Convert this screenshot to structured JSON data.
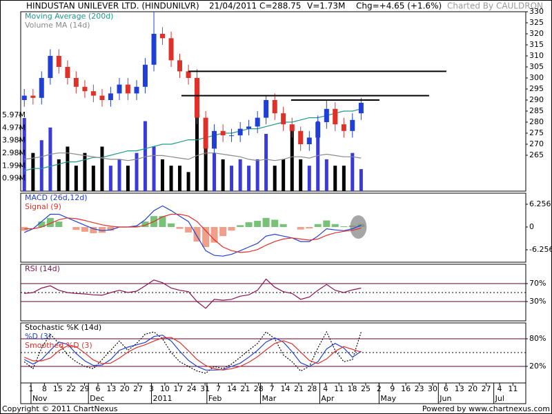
{
  "header": {
    "title": "HINDUSTAN UNILEVER LTD. (HINDUNILVR)",
    "date": "21/04/2011",
    "close": "C=288.75",
    "volume": "V=1.73M",
    "change": "Chg=+4.65 (+1.6%)",
    "credit": "Charted By CAULDRON"
  },
  "footer": {
    "copyright": "Copyright © 2011 ChartNexus",
    "powered_by": "Powered by www.chartnexus.com"
  },
  "chart_data": [
    {
      "type": "candlestick",
      "x": [
        -0.5,
        0.15,
        0.79,
        1.44,
        2.08,
        2.73,
        3.37,
        4.02,
        4.66,
        5.31,
        5.95,
        6.6,
        7.24,
        7.89,
        8.53,
        9.18,
        9.82,
        10.47,
        11.11,
        11.76,
        12.4,
        13.05,
        13.69,
        14.34,
        14.98,
        15.63,
        16.27,
        16.92,
        17.56,
        18.21,
        18.85,
        19.5,
        20.14,
        20.79,
        21.43,
        22.08,
        22.72,
        23.37,
        24.01,
        24.66
      ],
      "xlim": [
        -0.77,
        36.96
      ],
      "xticks": [
        {
          "value": 0,
          "label": "1"
        },
        {
          "value": 1,
          "label": "8"
        },
        {
          "value": 2,
          "label": "15"
        },
        {
          "value": 3,
          "label": "22"
        },
        {
          "value": 4,
          "label": "29"
        },
        {
          "value": 5,
          "label": "6"
        },
        {
          "value": 6,
          "label": "13"
        },
        {
          "value": 7,
          "label": "20"
        },
        {
          "value": 8,
          "label": "27"
        },
        {
          "value": 9,
          "label": "3"
        },
        {
          "value": 10,
          "label": "10"
        },
        {
          "value": 11,
          "label": "17"
        },
        {
          "value": 12,
          "label": "24"
        },
        {
          "value": 13,
          "label": "31"
        },
        {
          "value": 14,
          "label": "7"
        },
        {
          "value": 15,
          "label": "14"
        },
        {
          "value": 16,
          "label": "21"
        },
        {
          "value": 17,
          "label": "28"
        },
        {
          "value": 18,
          "label": "7"
        },
        {
          "value": 19,
          "label": "14"
        },
        {
          "value": 20,
          "label": "21"
        },
        {
          "value": 21,
          "label": "28"
        },
        {
          "value": 22,
          "label": "4"
        },
        {
          "value": 23,
          "label": "11"
        },
        {
          "value": 24,
          "label": "18"
        },
        {
          "value": 25,
          "label": "25"
        },
        {
          "value": 26,
          "label": "2"
        },
        {
          "value": 27,
          "label": "9"
        },
        {
          "value": 28,
          "label": "16"
        },
        {
          "value": 29,
          "label": "23"
        },
        {
          "value": 30,
          "label": "30"
        },
        {
          "value": 31,
          "label": "6"
        },
        {
          "value": 32,
          "label": "13"
        },
        {
          "value": 33,
          "label": "20"
        },
        {
          "value": 34,
          "label": "27"
        },
        {
          "value": 35,
          "label": "4"
        },
        {
          "value": 36,
          "label": "11"
        }
      ],
      "month_ticks": [
        {
          "value": 0,
          "label": "Nov"
        },
        {
          "value": 4.29,
          "label": "Dec"
        },
        {
          "value": 9,
          "label": "2011"
        },
        {
          "value": 13.14,
          "label": "Feb"
        },
        {
          "value": 17.14,
          "label": "Mar"
        },
        {
          "value": 21.57,
          "label": "Apr"
        },
        {
          "value": 26,
          "label": "May"
        },
        {
          "value": 30.43,
          "label": "Jun"
        },
        {
          "value": 34.57,
          "label": "Jul"
        }
      ],
      "open": [
        290,
        292,
        291,
        300,
        310,
        305,
        300,
        296,
        294,
        292,
        290,
        293,
        297,
        293,
        296,
        306,
        320,
        318,
        308,
        303,
        300,
        282,
        268,
        276,
        274,
        274,
        277,
        278,
        282,
        290,
        284,
        279,
        276,
        270,
        273,
        280,
        286,
        279,
        276,
        284
      ],
      "high": [
        295,
        295,
        303,
        313,
        313,
        308,
        303,
        299,
        297,
        295,
        296,
        300,
        300,
        299,
        309,
        330,
        323,
        321,
        311,
        306,
        304,
        285,
        279,
        279,
        277,
        280,
        281,
        285,
        292,
        293,
        287,
        282,
        278,
        276,
        283,
        290,
        289,
        282,
        284,
        291
      ],
      "low": [
        287,
        288,
        288,
        297,
        302,
        297,
        293,
        291,
        289,
        287,
        287,
        290,
        290,
        290,
        293,
        303,
        315,
        305,
        300,
        297,
        279,
        265,
        265,
        271,
        271,
        271,
        274,
        275,
        279,
        281,
        276,
        273,
        267,
        267,
        270,
        277,
        276,
        273,
        273,
        281
      ],
      "close": [
        292,
        291,
        300,
        310,
        305,
        300,
        296,
        294,
        292,
        290,
        293,
        297,
        293,
        296,
        306,
        320,
        318,
        308,
        303,
        300,
        282,
        268,
        276,
        274,
        274,
        277,
        278,
        282,
        290,
        284,
        279,
        276,
        270,
        273,
        280,
        286,
        279,
        276,
        281,
        288.75
      ],
      "candle_colors": [
        "#1f3fd6",
        "#e0302a"
      ],
      "ylim": [
        248.75,
        330
      ],
      "yticks": [
        265,
        270,
        275,
        280,
        285,
        290,
        295,
        300,
        305,
        310,
        315,
        320,
        325,
        330
      ],
      "volume": [
        5.75,
        3.0,
        4.0,
        5.0,
        2.5,
        3.5,
        2.0,
        3.0,
        2.0,
        3.5,
        2.0,
        2.5,
        2.0,
        3.0,
        5.5,
        3.5,
        2.5,
        2.0,
        2.0,
        1.5,
        7.0,
        4.0,
        3.0,
        2.5,
        2.0,
        2.5,
        2.0,
        2.5,
        4.5,
        2.0,
        2.5,
        5.0,
        2.5,
        2.0,
        5.5,
        2.5,
        2.0,
        2.0,
        3.0,
        1.73
      ],
      "volume_colors": [
        "#3a3ad8",
        "#000000"
      ],
      "y2lim": [
        0,
        14.1
      ],
      "y2ticks": [
        {
          "value": 0.99,
          "label": "0.99M"
        },
        {
          "value": 1.99,
          "label": "1.99M"
        },
        {
          "value": 2.98,
          "label": "2.98M"
        },
        {
          "value": 3.98,
          "label": "3.98M"
        },
        {
          "value": 4.97,
          "label": "4.97M"
        },
        {
          "value": 5.97,
          "label": "5.97M"
        }
      ],
      "series": [
        {
          "name": "Moving Average (200d)",
          "color": "#1e9a8a",
          "values": [
            258,
            259,
            259,
            260,
            261,
            262,
            262,
            263,
            264,
            264,
            265,
            266,
            267,
            267,
            268,
            269,
            270,
            270,
            271,
            272,
            272,
            273,
            274,
            275,
            275,
            276,
            277,
            277,
            278,
            279,
            280,
            280,
            281,
            282,
            282,
            283,
            284,
            285,
            285,
            286
          ]
        },
        {
          "name": "Volume MA (14d)",
          "color": "#8a8a8a",
          "axis": "y2",
          "values": [
            2.5,
            2.6,
            2.7,
            2.9,
            3.0,
            3.0,
            2.9,
            2.8,
            2.7,
            2.6,
            2.5,
            2.5,
            2.4,
            2.5,
            2.7,
            2.8,
            2.8,
            2.7,
            2.6,
            2.5,
            2.8,
            3.0,
            3.0,
            2.9,
            2.8,
            2.7,
            2.5,
            2.4,
            2.5,
            2.4,
            2.5,
            2.7,
            2.7,
            2.6,
            2.8,
            2.9,
            2.8,
            2.7,
            2.7,
            2.6
          ]
        }
      ],
      "reference_lines": [
        {
          "y": 303,
          "x": [
            11.75,
            31.03
          ]
        },
        {
          "y": 292,
          "x": [
            11.24,
            29.74
          ]
        },
        {
          "y": 290,
          "x": [
            19.43,
            26.03
          ]
        }
      ]
    },
    {
      "type": "line",
      "ylim": [
        -9.67,
        9.29
      ],
      "yticks": [
        -6.256,
        0,
        6.256
      ],
      "histogram": [
        -1.0,
        0,
        1.5,
        2.5,
        1.5,
        0,
        -0.8,
        -1.3,
        -1.7,
        -1.6,
        -1.0,
        0,
        0,
        0.3,
        1.5,
        3.0,
        3.0,
        1.0,
        -0.5,
        -1.5,
        -4.0,
        -5.5,
        -4.3,
        -2.5,
        -1.0,
        0.5,
        1.3,
        1.7,
        2.5,
        2.0,
        0.8,
        0,
        -0.7,
        -0.4,
        0.8,
        1.8,
        0.8,
        0.2,
        0.4,
        0.8
      ],
      "histogram_colors": [
        "#78c278",
        "#f0a08a"
      ],
      "series": [
        {
          "name": "MACD (26d,12d)",
          "color": "#1f3fd6",
          "values": [
            -1.5,
            -0.5,
            1.5,
            3.5,
            3.5,
            2.5,
            1.5,
            0.5,
            -0.5,
            -1.0,
            -0.8,
            0,
            0,
            0.3,
            2.0,
            4.5,
            5.8,
            4.5,
            3.0,
            1.5,
            -2.5,
            -6.5,
            -7.8,
            -8.0,
            -7.5,
            -6.5,
            -5.5,
            -4.5,
            -2.5,
            -2.0,
            -2.5,
            -3.0,
            -4.0,
            -4.0,
            -2.5,
            -0.5,
            -0.8,
            -1.0,
            -0.5,
            0.5
          ]
        },
        {
          "name": "Signal (9)",
          "color": "#e0302a",
          "values": [
            -0.5,
            -0.5,
            0,
            1.0,
            2.0,
            2.5,
            2.3,
            1.8,
            1.2,
            0.6,
            0.2,
            0,
            0,
            0,
            0.5,
            1.5,
            2.8,
            3.5,
            3.5,
            3.0,
            1.5,
            -1.0,
            -3.5,
            -5.5,
            -6.5,
            -7.0,
            -6.8,
            -6.2,
            -5.0,
            -4.0,
            -3.3,
            -3.0,
            -3.3,
            -3.6,
            -3.3,
            -2.3,
            -1.6,
            -1.2,
            -0.9,
            -0.3
          ]
        }
      ]
    },
    {
      "type": "line",
      "ylim": [
        -13,
        113
      ],
      "yticks": [
        {
          "value": 30,
          "label": "30%"
        },
        {
          "value": 70,
          "label": "70%"
        }
      ],
      "grid": true,
      "midline": 50,
      "series": [
        {
          "name": "RSI (14d)",
          "color": "#8a1050",
          "values": [
            48,
            50,
            60,
            65,
            55,
            50,
            48,
            47,
            45,
            44,
            50,
            55,
            50,
            53,
            65,
            78,
            72,
            60,
            55,
            52,
            30,
            15,
            35,
            33,
            35,
            42,
            45,
            55,
            80,
            62,
            52,
            48,
            35,
            40,
            55,
            68,
            55,
            50,
            56,
            60
          ]
        }
      ]
    },
    {
      "type": "line",
      "ylim": [
        -16,
        114.5
      ],
      "yticks": [
        {
          "value": 20,
          "label": "20%"
        },
        {
          "value": 80,
          "label": "80%"
        }
      ],
      "grid": true,
      "midline": 50,
      "series": [
        {
          "name": "Stochastic %K (14d)",
          "color": "#000000",
          "dash": "2 2",
          "values": [
            30,
            15,
            60,
            90,
            70,
            45,
            30,
            20,
            15,
            35,
            55,
            75,
            55,
            70,
            90,
            95,
            80,
            50,
            30,
            20,
            10,
            5,
            20,
            15,
            25,
            40,
            55,
            70,
            95,
            80,
            45,
            30,
            10,
            20,
            60,
            95,
            55,
            30,
            35,
            95
          ]
        },
        {
          "name": "%D (3)",
          "color": "#1f3fd6",
          "values": [
            35,
            25,
            35,
            55,
            73,
            68,
            48,
            32,
            22,
            23,
            35,
            55,
            62,
            67,
            72,
            85,
            88,
            75,
            53,
            33,
            20,
            12,
            12,
            13,
            20,
            27,
            40,
            55,
            73,
            82,
            73,
            52,
            28,
            20,
            30,
            58,
            70,
            60,
            40,
            53
          ]
        },
        {
          "name": "Smoothed %D (3)",
          "color": "#e0302a",
          "values": [
            40,
            32,
            32,
            38,
            54,
            65,
            63,
            49,
            34,
            26,
            27,
            38,
            51,
            61,
            67,
            75,
            82,
            83,
            72,
            54,
            35,
            22,
            15,
            12,
            15,
            20,
            29,
            41,
            56,
            70,
            76,
            69,
            51,
            33,
            26,
            36,
            53,
            63,
            57,
            51
          ]
        }
      ]
    }
  ]
}
